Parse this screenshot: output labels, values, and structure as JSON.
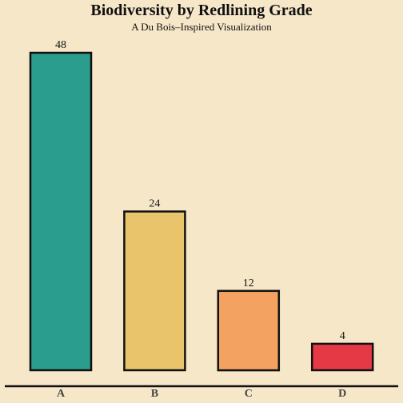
{
  "chart_data": {
    "type": "bar",
    "title": "Biodiversity by Redlining Grade",
    "subtitle": "A Du Bois–Inspired Visualization",
    "xlabel": "",
    "ylabel": "",
    "categories": [
      "A",
      "B",
      "C",
      "D"
    ],
    "values": [
      48,
      24,
      12,
      4
    ],
    "data_labels": [
      "48",
      "24",
      "12",
      "4"
    ],
    "colors": [
      "#2a9d8f",
      "#e9c46a",
      "#f4a261",
      "#e63946"
    ],
    "ylim": [
      0,
      48
    ],
    "grid": false,
    "legend": "none"
  },
  "theme": {
    "background": "#f7e7c9",
    "bar_stroke": "#111111",
    "axis_color": "#111111"
  }
}
